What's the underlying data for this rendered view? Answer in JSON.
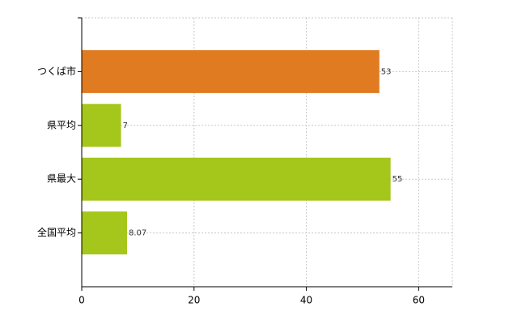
{
  "chart_data": {
    "type": "hbar",
    "categories": [
      "つくば市",
      "県平均",
      "県最大",
      "全国平均"
    ],
    "values": [
      53,
      7,
      55,
      8.07
    ],
    "colors": [
      "#e07b22",
      "#a5c61a",
      "#a5c61a",
      "#a5c61a"
    ],
    "xlim": [
      0,
      66
    ],
    "xticks": [
      0,
      20,
      40,
      60
    ],
    "grid": true
  }
}
